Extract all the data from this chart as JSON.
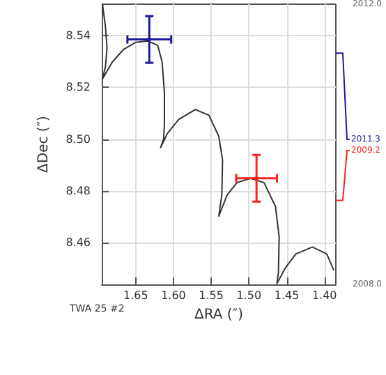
{
  "chart_data": {
    "type": "line",
    "xlabel": "ΔRA (″)",
    "ylabel": "ΔDec (″)",
    "xlim": [
      1.695,
      1.385
    ],
    "xticks": [
      1.65,
      {
        "value": 1.6,
        "label": "1.60"
      },
      1.55,
      {
        "value": 1.5,
        "label": "1.50"
      },
      1.45,
      {
        "value": 1.4,
        "label": "1.40"
      }
    ],
    "ylim": [
      8.444,
      8.552
    ],
    "yticks": [
      8.46,
      8.48,
      {
        "value": 8.5,
        "label": "8.50"
      },
      8.52,
      8.54
    ],
    "y2lim": [
      2008.0,
      2012.0
    ],
    "y2ticks": [
      {
        "value": 2008,
        "label": "2008.0"
      },
      {
        "value": 2012,
        "label": "2012.0"
      }
    ],
    "grid": true,
    "marker": "none",
    "line_style": "solid",
    "series": [
      {
        "type": "line",
        "color": "#333333",
        "x": [
          1.694,
          1.69,
          1.688,
          1.69,
          1.694,
          1.681,
          1.666,
          1.65,
          1.634,
          1.621,
          1.615,
          1.612,
          1.612,
          1.613,
          1.617,
          1.608,
          1.593,
          1.571,
          1.553,
          1.54,
          1.535,
          1.536,
          1.54,
          1.529,
          1.516,
          1.498,
          1.48,
          1.465,
          1.46,
          1.461,
          1.463,
          1.452,
          1.438,
          1.416,
          1.397,
          1.388
        ],
        "values": [
          8.552,
          8.5432,
          8.5351,
          8.528,
          8.5232,
          8.5297,
          8.5346,
          8.5373,
          8.5378,
          8.5362,
          8.5297,
          8.5178,
          8.5054,
          8.5,
          8.4968,
          8.5022,
          8.5076,
          8.5114,
          8.5092,
          8.5011,
          8.4919,
          8.4784,
          8.4703,
          8.4784,
          8.4832,
          8.4849,
          8.4832,
          8.4741,
          8.4622,
          8.4486,
          8.4443,
          8.4503,
          8.4557,
          8.4584,
          8.4557,
          8.4497
        ]
      },
      {
        "type": "scatter",
        "color": "#1a1a9a",
        "x": [
          1.632
        ],
        "values": [
          8.5384
        ],
        "errors": [
          0.009
        ],
        "xerrors": [
          0.029
        ]
      },
      {
        "type": "scatter",
        "color": "#ff2020",
        "x": [
          1.49
        ],
        "values": [
          8.4849
        ],
        "errors": [
          0.009
        ],
        "xerrors": [
          0.027
        ]
      }
    ],
    "annotations": [
      "TWA 25 #2",
      "2011.3",
      "2009.2"
    ]
  }
}
